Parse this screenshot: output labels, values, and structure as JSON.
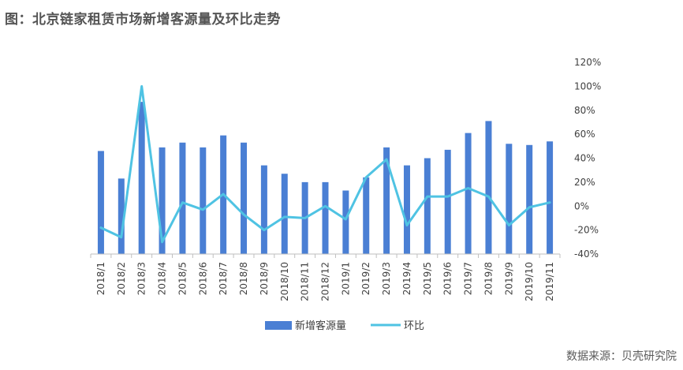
{
  "page": {
    "title": "图：北京链家租赁市场新增客源量及环比走势",
    "source": "数据来源：贝壳研究院"
  },
  "colors": {
    "bar": "#4A7FD4",
    "line": "#4FC3E3",
    "axis": "#BFBFBF"
  },
  "chart_data": {
    "type": "bar+line",
    "categories": [
      "2018/1",
      "2018/2",
      "2018/3",
      "2018/4",
      "2018/5",
      "2018/6",
      "2018/7",
      "2018/8",
      "2018/9",
      "2018/10",
      "2018/11",
      "2018/12",
      "2019/1",
      "2019/2",
      "2019/3",
      "2019/4",
      "2019/5",
      "2019/6",
      "2019/7",
      "2019/8",
      "2019/9",
      "2019/10",
      "2019/11"
    ],
    "series": [
      {
        "name": "新增客源量",
        "type": "bar",
        "axis": "right",
        "values": [
          46,
          23,
          87,
          49,
          53,
          49,
          59,
          53,
          34,
          27,
          20,
          20,
          13,
          24,
          49,
          34,
          40,
          47,
          61,
          71,
          52,
          51,
          54
        ]
      },
      {
        "name": "环比",
        "type": "line",
        "axis": "right",
        "values": [
          -18,
          -26,
          100,
          -30,
          3,
          -3,
          10,
          -7,
          -20,
          -9,
          -10,
          0,
          -11,
          24,
          39,
          -16,
          8,
          8,
          15,
          8,
          -16,
          -1,
          3
        ]
      }
    ],
    "y2lim": [
      -40,
      120
    ],
    "y2ticks": [
      "120%",
      "100%",
      "80%",
      "60%",
      "40%",
      "20%",
      "0%",
      "-20%",
      "-40%"
    ],
    "y2tick_values": [
      120,
      100,
      80,
      60,
      40,
      20,
      0,
      -20,
      -40
    ],
    "legend": [
      "新增客源量",
      "环比"
    ],
    "legend_position": "bottom"
  }
}
